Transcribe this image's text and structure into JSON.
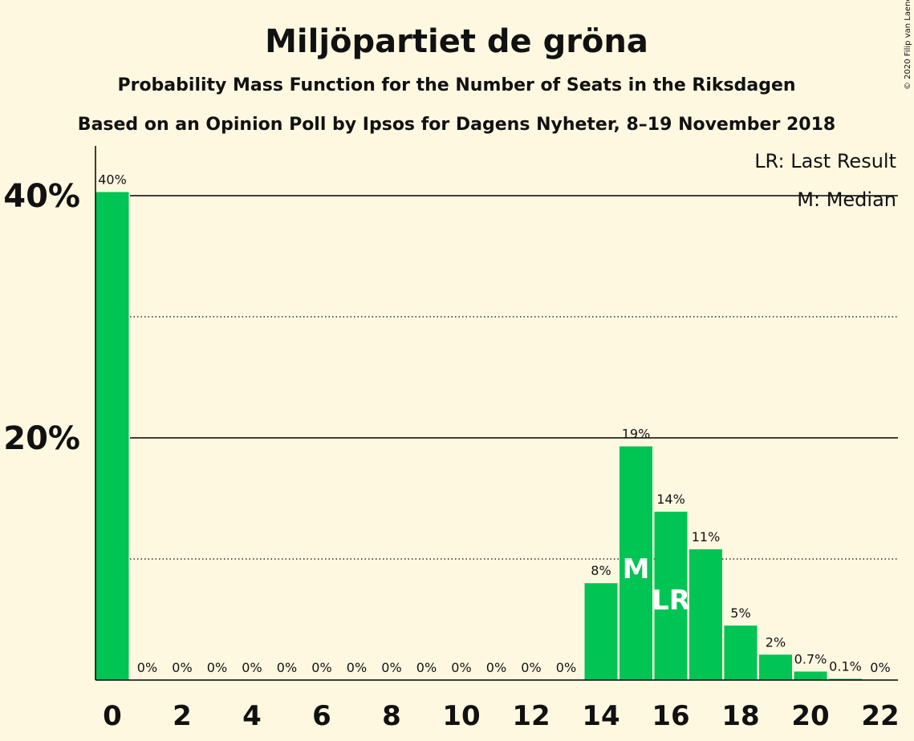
{
  "copyright": "© 2020 Filip van Laenen",
  "legend": {
    "last_result": "LR: Last Result",
    "median": "M: Median"
  },
  "colors": {
    "bar": "#00C454",
    "background": "#FFF8E1",
    "axis": "#000000"
  },
  "chart_data": {
    "type": "bar",
    "title": "Miljöpartiet de gröna",
    "subtitle": "Probability Mass Function for the Number of Seats in the Riksdagen",
    "subtitle2": "Based on an Opinion Poll by Ipsos for Dagens Nyheter, 8–19 November 2018",
    "xlabel": "",
    "ylabel": "",
    "ylim": [
      0,
      44
    ],
    "yticks": [
      {
        "value": 20,
        "label": "20%"
      },
      {
        "value": 40,
        "label": "40%"
      }
    ],
    "minor_gridlines": [
      10,
      30
    ],
    "xticks": [
      0,
      2,
      4,
      6,
      8,
      10,
      12,
      14,
      16,
      18,
      20,
      22
    ],
    "categories": [
      0,
      1,
      2,
      3,
      4,
      5,
      6,
      7,
      8,
      9,
      10,
      11,
      12,
      13,
      14,
      15,
      16,
      17,
      18,
      19,
      20,
      21,
      22
    ],
    "values": [
      40.3,
      0,
      0,
      0,
      0,
      0,
      0,
      0,
      0,
      0,
      0,
      0,
      0,
      0,
      8.0,
      19.3,
      13.9,
      10.8,
      4.5,
      2.1,
      0.7,
      0.1,
      0
    ],
    "data_labels": [
      "40%",
      "0%",
      "0%",
      "0%",
      "0%",
      "0%",
      "0%",
      "0%",
      "0%",
      "0%",
      "0%",
      "0%",
      "0%",
      "0%",
      "8%",
      "19%",
      "14%",
      "11%",
      "5%",
      "2%",
      "0.7%",
      "0.1%",
      "0%"
    ],
    "median": 15,
    "last_result": 16,
    "median_marker": "M",
    "last_result_marker": "LR",
    "grid": true,
    "legend_position": "top-right"
  }
}
